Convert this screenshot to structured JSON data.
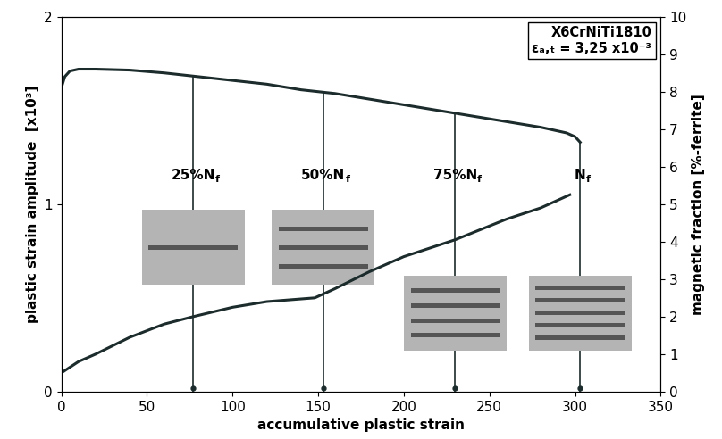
{
  "chart_data": {
    "type": "line",
    "xlabel": "accumulative plastic strain",
    "ylabel": "plastic strain amplitude  [x10³]",
    "y2label": "magnetic fraction [%-ferrite]",
    "xlim": [
      0,
      350
    ],
    "xticks": [
      0,
      50,
      100,
      150,
      200,
      250,
      300,
      350
    ],
    "ylim": [
      0,
      2
    ],
    "yticks": [
      0,
      1,
      2
    ],
    "y2lim": [
      0,
      10
    ],
    "y2ticks": [
      0,
      1,
      2,
      3,
      4,
      5,
      6,
      7,
      8,
      9,
      10
    ],
    "grid": false,
    "series": [
      {
        "name": "plastic strain amplitude",
        "color": "#1c2b2b",
        "axis": "y",
        "x": [
          0,
          2,
          5,
          10,
          20,
          40,
          60,
          80,
          100,
          120,
          140,
          160,
          180,
          200,
          220,
          240,
          260,
          280,
          295,
          300,
          303
        ],
        "values": [
          1.62,
          1.68,
          1.71,
          1.72,
          1.72,
          1.715,
          1.7,
          1.68,
          1.66,
          1.64,
          1.61,
          1.59,
          1.56,
          1.53,
          1.5,
          1.47,
          1.44,
          1.41,
          1.38,
          1.36,
          1.33
        ]
      },
      {
        "name": "magnetic fraction",
        "color": "#1c2b2b",
        "axis": "y2",
        "x": [
          0,
          10,
          20,
          40,
          60,
          77,
          100,
          120,
          148,
          160,
          180,
          200,
          230,
          260,
          280,
          297
        ],
        "values": [
          0.5,
          0.8,
          1.0,
          1.45,
          1.8,
          2.0,
          2.25,
          2.4,
          2.5,
          2.75,
          3.2,
          3.6,
          4.05,
          4.6,
          4.9,
          5.25
        ]
      }
    ],
    "annotations": [
      {
        "text": "25%N",
        "subscript": "f",
        "x": 77
      },
      {
        "text": "50%N",
        "subscript": "f",
        "x": 153
      },
      {
        "text": "75%N",
        "subscript": "f",
        "x": 230
      },
      {
        "text": "N",
        "subscript": "f",
        "x": 303
      }
    ],
    "info_box": [
      "X6CrNiTi1810",
      "εₐ,ₜ = 3,25 x10⁻³"
    ]
  }
}
